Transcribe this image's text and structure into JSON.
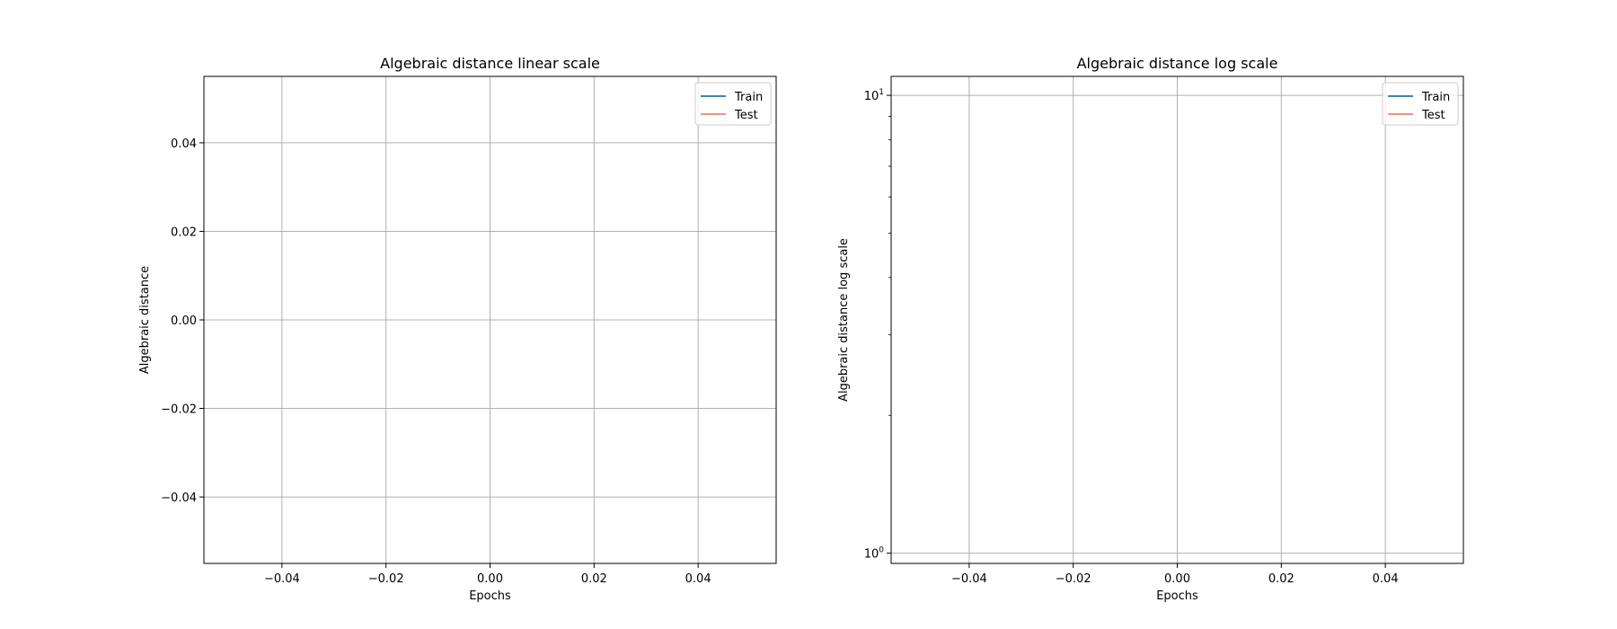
{
  "chart_data": [
    {
      "type": "line",
      "title": "Algebraic distance linear scale",
      "xlabel": "Epochs",
      "ylabel": "Algebraic distance",
      "xlim": [
        -0.055,
        0.055
      ],
      "ylim": [
        -0.055,
        0.055
      ],
      "yscale": "linear",
      "grid": true,
      "legend_placement": "top-right",
      "x_ticks": [
        "−0.04",
        "−0.02",
        "0.00",
        "0.02",
        "0.04"
      ],
      "x_tick_values": [
        -0.04,
        -0.02,
        0.0,
        0.02,
        0.04
      ],
      "y_ticks": [
        "0.04",
        "0.02",
        "0.00",
        "−0.02",
        "−0.04"
      ],
      "y_tick_values": [
        0.04,
        0.02,
        0.0,
        -0.02,
        -0.04
      ],
      "series": [
        {
          "name": "Train",
          "color": "#1f77b4",
          "x": [],
          "y": []
        },
        {
          "name": "Test",
          "color": "#fa8072",
          "x": [],
          "y": []
        }
      ]
    },
    {
      "type": "line",
      "title": "Algebraic distance log scale",
      "xlabel": "Epochs",
      "ylabel": "Algebraic distance log scale",
      "xlim": [
        -0.055,
        0.055
      ],
      "ylim": [
        0.95,
        11.0
      ],
      "yscale": "log",
      "grid": true,
      "legend_placement": "top-right",
      "x_ticks": [
        "−0.04",
        "−0.02",
        "0.00",
        "0.02",
        "0.04"
      ],
      "x_tick_values": [
        -0.04,
        -0.02,
        0.0,
        0.02,
        0.04
      ],
      "y_ticks": [
        {
          "base": "10",
          "exp": "1",
          "value": 10
        },
        {
          "base": "10",
          "exp": "0",
          "value": 1
        }
      ],
      "series": [
        {
          "name": "Train",
          "color": "#1f77b4",
          "x": [],
          "y": []
        },
        {
          "name": "Test",
          "color": "#fa8072",
          "x": [],
          "y": []
        }
      ]
    }
  ]
}
